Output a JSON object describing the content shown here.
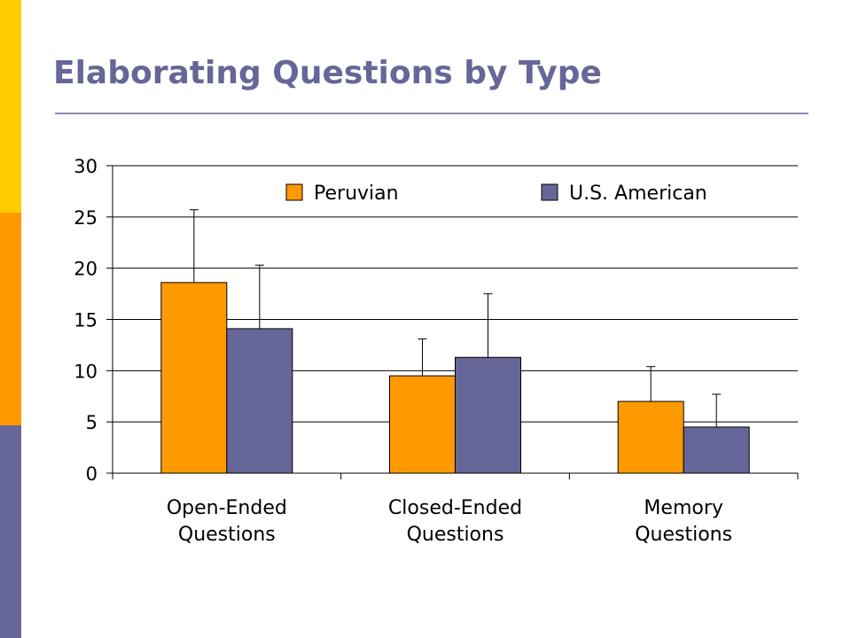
{
  "slide": {
    "title": "Elaborating Questions by Type",
    "colors": {
      "title": "#666699",
      "bar_top": "#FFCC00",
      "bar_mid": "#FF9900",
      "bar_bottom": "#666699"
    }
  },
  "chart_data": {
    "type": "bar",
    "title": "",
    "xlabel": "",
    "ylabel": "",
    "categories": [
      [
        "Open-Ended",
        "Questions"
      ],
      [
        "Closed-Ended",
        "Questions"
      ],
      [
        "Memory",
        "Questions"
      ]
    ],
    "series": [
      {
        "name": "Peruvian",
        "color": "#FF9900",
        "values": [
          18.6,
          9.5,
          7.0
        ],
        "error_upper": [
          25.7,
          13.1,
          10.4
        ]
      },
      {
        "name": "U.S. American",
        "color": "#666699",
        "values": [
          14.1,
          11.3,
          4.5
        ],
        "error_upper": [
          20.3,
          17.5,
          7.7
        ]
      }
    ],
    "ylim": [
      0,
      30
    ],
    "yticks": [
      0,
      5,
      10,
      15,
      20,
      25,
      30
    ],
    "grid": true,
    "error_bars": "upper only",
    "legend_position": "top"
  }
}
